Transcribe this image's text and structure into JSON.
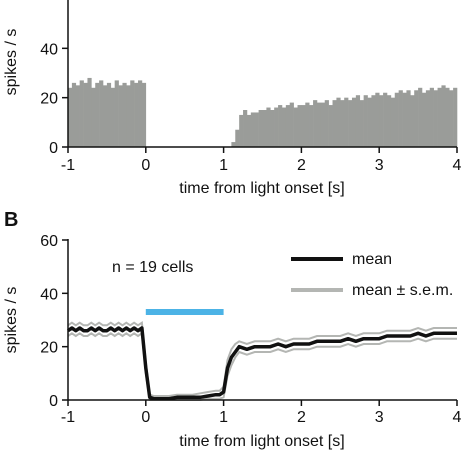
{
  "panel_b_letter": "B",
  "chart_data": [
    {
      "type": "bar",
      "panel": "A",
      "xlabel": "time from light onset [s]",
      "ylabel": "spikes / s",
      "xlim": [
        -1,
        4
      ],
      "ylim": [
        0,
        60
      ],
      "xticks": [
        "-1",
        "0",
        "1",
        "2",
        "3",
        "4"
      ],
      "yticks": [
        "0",
        "20",
        "40"
      ],
      "bar_color": "#9a9c99",
      "bin_width_s": 0.05,
      "x": [
        -0.975,
        -0.925,
        -0.875,
        -0.825,
        -0.775,
        -0.725,
        -0.675,
        -0.625,
        -0.575,
        -0.525,
        -0.475,
        -0.425,
        -0.375,
        -0.325,
        -0.275,
        -0.225,
        -0.175,
        -0.125,
        -0.075,
        -0.025,
        0.025,
        0.075,
        0.125,
        0.175,
        0.225,
        0.275,
        0.325,
        0.375,
        0.425,
        0.475,
        0.525,
        0.575,
        0.625,
        0.675,
        0.725,
        0.775,
        0.825,
        0.875,
        0.925,
        0.975,
        1.025,
        1.075,
        1.125,
        1.175,
        1.225,
        1.275,
        1.325,
        1.375,
        1.425,
        1.475,
        1.525,
        1.575,
        1.625,
        1.675,
        1.725,
        1.775,
        1.825,
        1.875,
        1.925,
        1.975,
        2.025,
        2.075,
        2.125,
        2.175,
        2.225,
        2.275,
        2.325,
        2.375,
        2.425,
        2.475,
        2.525,
        2.575,
        2.625,
        2.675,
        2.725,
        2.775,
        2.825,
        2.875,
        2.925,
        2.975,
        3.025,
        3.075,
        3.125,
        3.175,
        3.225,
        3.275,
        3.325,
        3.375,
        3.425,
        3.475,
        3.525,
        3.575,
        3.625,
        3.675,
        3.725,
        3.775,
        3.825,
        3.875,
        3.925,
        3.975
      ],
      "values": [
        24,
        26,
        25,
        27,
        26,
        28,
        24,
        26,
        27,
        25,
        26,
        24,
        27,
        25,
        26,
        25,
        27,
        26,
        27,
        26,
        0,
        0,
        0,
        0,
        0,
        0,
        0,
        0,
        0,
        0,
        0,
        0,
        0,
        0,
        0,
        0,
        0,
        0,
        0,
        0,
        0,
        0,
        2,
        7,
        13,
        15,
        13,
        14,
        14,
        15,
        15,
        16,
        15,
        16,
        17,
        16,
        17,
        18,
        16,
        17,
        17,
        18,
        17,
        19,
        18,
        18,
        19,
        17,
        19,
        20,
        19,
        20,
        19,
        20,
        21,
        19,
        21,
        20,
        21,
        22,
        21,
        22,
        21,
        20,
        22,
        23,
        22,
        23,
        21,
        23,
        24,
        22,
        23,
        24,
        23,
        24,
        25,
        24,
        23,
        24
      ]
    },
    {
      "type": "line",
      "panel": "B",
      "xlabel": "time from light onset [s]",
      "ylabel": "spikes / s",
      "xlim": [
        -1,
        4
      ],
      "ylim": [
        0,
        60
      ],
      "xticks": [
        "-1",
        "0",
        "1",
        "2",
        "3",
        "4"
      ],
      "yticks": [
        "0",
        "20",
        "40",
        "60"
      ],
      "annotation": "n = 19 cells",
      "light_bar": {
        "x_start": 0,
        "x_end": 1,
        "y": 33,
        "color": "#4cb3e6"
      },
      "legend_position": "top-right",
      "x": [
        -1.0,
        -0.95,
        -0.9,
        -0.85,
        -0.8,
        -0.75,
        -0.7,
        -0.65,
        -0.6,
        -0.55,
        -0.5,
        -0.45,
        -0.4,
        -0.35,
        -0.3,
        -0.25,
        -0.2,
        -0.15,
        -0.1,
        -0.05,
        0.0,
        0.05,
        0.1,
        0.2,
        0.3,
        0.4,
        0.5,
        0.6,
        0.7,
        0.8,
        0.9,
        0.95,
        1.0,
        1.05,
        1.1,
        1.15,
        1.2,
        1.3,
        1.4,
        1.5,
        1.6,
        1.7,
        1.8,
        1.9,
        2.0,
        2.1,
        2.2,
        2.3,
        2.4,
        2.5,
        2.6,
        2.7,
        2.8,
        2.9,
        3.0,
        3.1,
        3.2,
        3.3,
        3.4,
        3.5,
        3.6,
        3.7,
        3.8,
        3.9,
        4.0
      ],
      "series": [
        {
          "name": "mean",
          "color": "#111111",
          "values": [
            26,
            27,
            26,
            27,
            26,
            26,
            27,
            26,
            27,
            26,
            26,
            27,
            26,
            27,
            26,
            27,
            26,
            27,
            26,
            27,
            12,
            1,
            0.5,
            0.5,
            0.5,
            1,
            1,
            1,
            1,
            1.5,
            2,
            2,
            3,
            12,
            16,
            18,
            20,
            19,
            20,
            20,
            20,
            21,
            20,
            21,
            21,
            21,
            22,
            22,
            22,
            22,
            23,
            22,
            23,
            23,
            23,
            24,
            24,
            24,
            24,
            25,
            24,
            25,
            25,
            25,
            25
          ]
        },
        {
          "name": "mean ± s.e.m.",
          "color": "#b4b6b3",
          "upper": [
            28,
            29,
            28,
            29,
            28,
            28,
            29,
            28,
            29,
            28,
            28,
            29,
            28,
            29,
            28,
            29,
            28,
            29,
            28,
            29,
            14,
            2,
            1.5,
            1.5,
            1.5,
            2,
            2,
            2,
            2.5,
            3,
            3.5,
            3.5,
            5,
            15,
            19,
            21,
            22,
            21,
            22,
            22,
            22,
            23,
            22,
            23,
            23,
            23,
            24,
            24,
            24,
            24,
            25,
            24,
            25,
            25,
            25,
            26,
            26,
            26,
            26,
            27,
            26,
            27,
            27,
            27,
            27
          ],
          "lower": [
            24,
            25,
            24,
            25,
            24,
            24,
            25,
            24,
            25,
            24,
            24,
            25,
            24,
            25,
            24,
            25,
            24,
            25,
            24,
            25,
            10,
            0,
            0,
            0,
            0,
            0,
            0,
            0,
            0,
            0.5,
            0.5,
            0.5,
            1,
            9,
            13,
            16,
            18,
            17,
            18,
            18,
            18,
            19,
            18,
            19,
            19,
            19,
            20,
            20,
            20,
            20,
            21,
            20,
            21,
            21,
            21,
            22,
            22,
            22,
            22,
            23,
            22,
            23,
            23,
            23,
            23
          ]
        }
      ]
    }
  ]
}
